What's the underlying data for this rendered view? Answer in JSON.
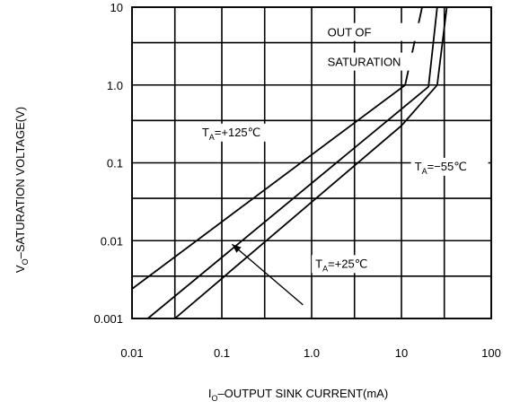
{
  "chart_data": {
    "type": "line",
    "title": "",
    "x_scale": "log",
    "y_scale": "log",
    "xlim": [
      0.01,
      100
    ],
    "ylim": [
      0.001,
      10
    ],
    "grid": true,
    "x_ticks": [
      {
        "value": 0.01,
        "label": "0.01"
      },
      {
        "value": 0.1,
        "label": "0.1"
      },
      {
        "value": 1,
        "label": "1.0"
      },
      {
        "value": 10,
        "label": "10"
      },
      {
        "value": 100,
        "label": "100"
      }
    ],
    "y_ticks": [
      {
        "value": 0.001,
        "label": "0.001"
      },
      {
        "value": 0.01,
        "label": "0.01"
      },
      {
        "value": 0.1,
        "label": "0.1"
      },
      {
        "value": 1,
        "label": "1.0"
      },
      {
        "value": 10,
        "label": "10"
      }
    ],
    "xlabel": {
      "main": "I",
      "sub": "O",
      "rest": "–OUTPUT SINK CURRENT(mA)"
    },
    "ylabel": {
      "main": "V",
      "sub": "O",
      "rest": "–SATURATION VOLTAGE(V)"
    },
    "series": [
      {
        "label": {
          "prefix": "T",
          "sub": "A",
          "text": "=+125℃"
        },
        "points": [
          [
            0.01,
            0.0024
          ],
          [
            11,
            1.0
          ],
          [
            17,
            10
          ]
        ]
      },
      {
        "label": {
          "prefix": "T",
          "sub": "A",
          "text": "=+25℃"
        },
        "points": [
          [
            0.015,
            0.001
          ],
          [
            20,
            0.95
          ],
          [
            25,
            10
          ]
        ]
      },
      {
        "label": {
          "prefix": "T",
          "sub": "A",
          "text": "=−55℃"
        },
        "points": [
          [
            0.03,
            0.001
          ],
          [
            10,
            0.3
          ],
          [
            25,
            1.0
          ],
          [
            32,
            10
          ]
        ]
      }
    ],
    "annotations": [
      {
        "text": "OUT OF",
        "x": 1.5,
        "y": 4.2
      },
      {
        "text": "SATURATION",
        "x": 1.5,
        "y": 1.75
      }
    ],
    "series_label_positions": [
      {
        "series": 0,
        "x": 0.06,
        "y": 0.22
      },
      {
        "series": 1,
        "x": 1.1,
        "y": 0.0045
      },
      {
        "series": 2,
        "x": 14,
        "y": 0.08
      }
    ],
    "arrow": {
      "from": [
        0.8,
        0.0015
      ],
      "to": [
        0.13,
        0.009
      ]
    }
  }
}
